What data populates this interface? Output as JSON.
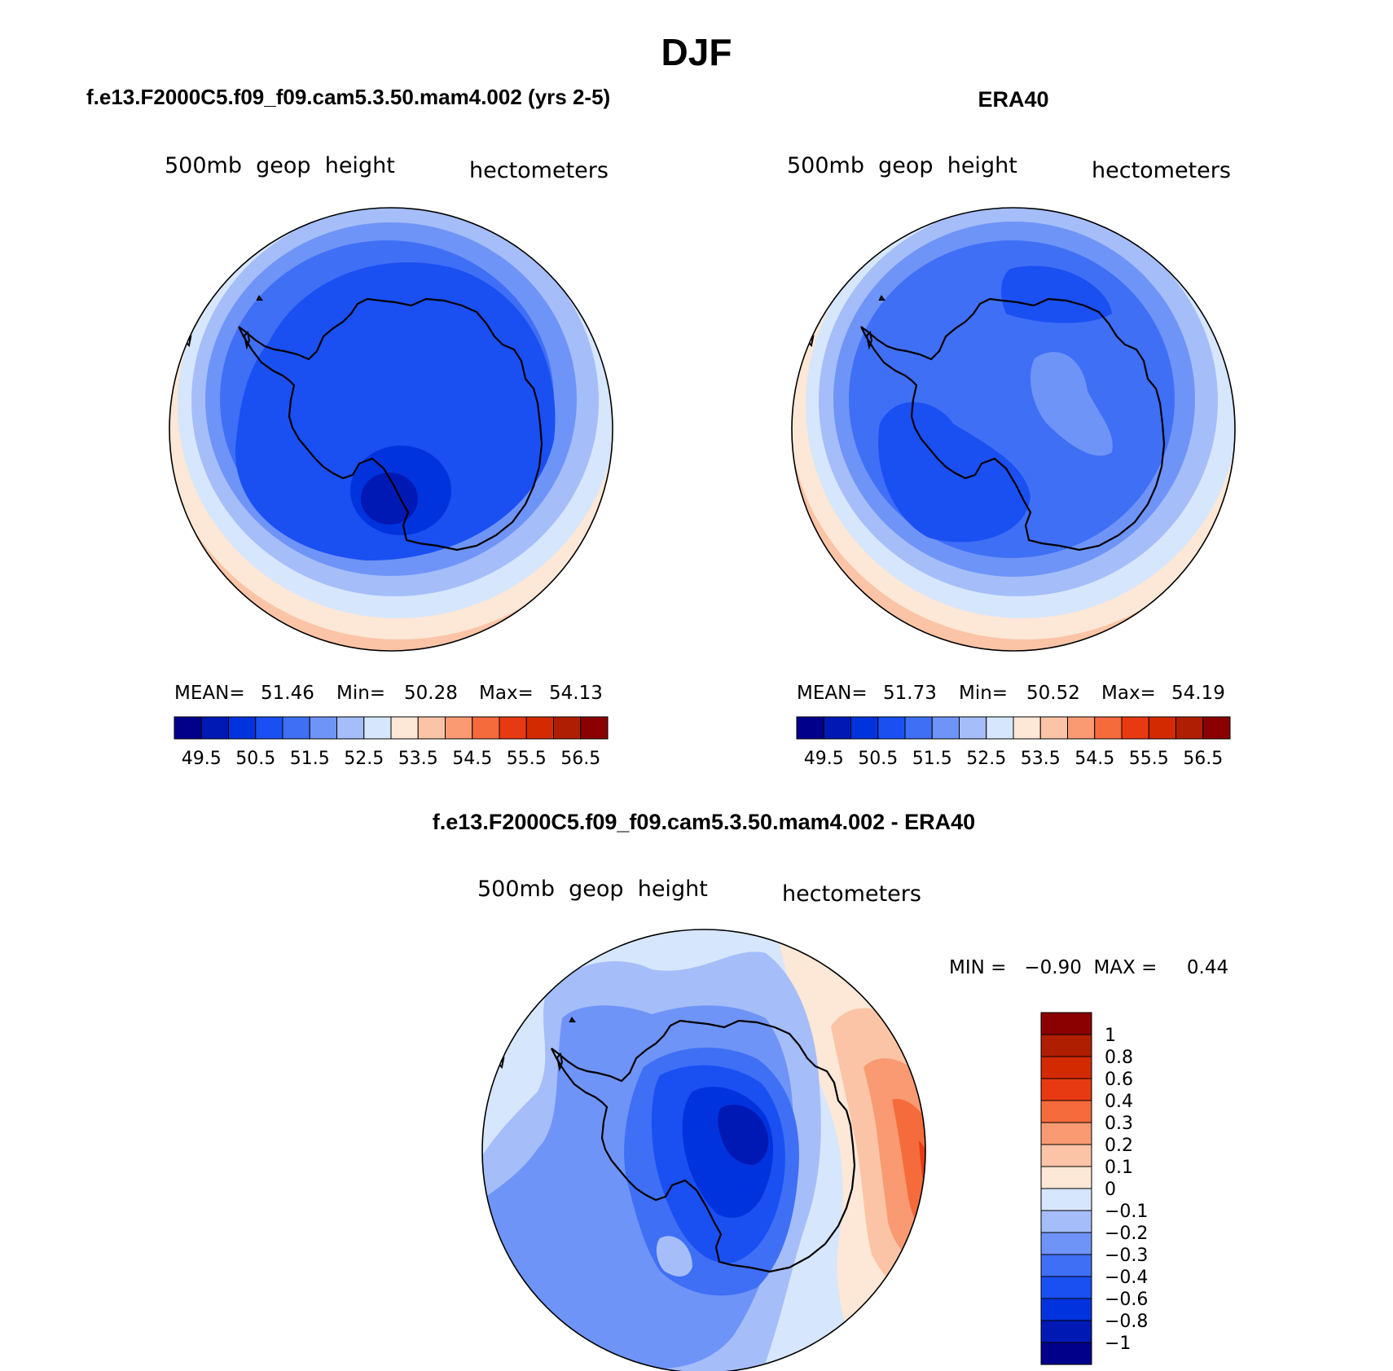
{
  "title": "DJF",
  "palette": [
    "#00008b",
    "#0019b4",
    "#0033dd",
    "#1a4ff2",
    "#3f6ff5",
    "#6f94f7",
    "#a5bdf9",
    "#d6e6fd",
    "#fde7d6",
    "#fbc4a6",
    "#f99a72",
    "#f66b3c",
    "#e83a12",
    "#d42a02",
    "#b01e02",
    "#8b0000"
  ],
  "panels": [
    {
      "id": "model",
      "header": "f.e13.F2000C5.f09_f09.cam5.3.50.mam4.002 (yrs 2-5)",
      "variable": "500mb  geop  height",
      "units": "hectometers",
      "stats": {
        "mean_label": "MEAN=",
        "mean": "51.46",
        "min_label": "Min=",
        "min": "50.28",
        "max_label": "Max=",
        "max": "54.13"
      },
      "colorbar_ticks": [
        "49.5",
        "50.5",
        "51.5",
        "52.5",
        "53.5",
        "54.5",
        "55.5",
        "56.5"
      ]
    },
    {
      "id": "era40",
      "header": "ERA40",
      "variable": "500mb  geop  height",
      "units": "hectometers",
      "stats": {
        "mean_label": "MEAN=",
        "mean": "51.73",
        "min_label": "Min=",
        "min": "50.52",
        "max_label": "Max=",
        "max": "54.19"
      },
      "colorbar_ticks": [
        "49.5",
        "50.5",
        "51.5",
        "52.5",
        "53.5",
        "54.5",
        "55.5",
        "56.5"
      ]
    },
    {
      "id": "difference",
      "header": "f.e13.F2000C5.f09_f09.cam5.3.50.mam4.002 - ERA40",
      "variable": "500mb  geop  height",
      "units": "hectometers",
      "stats": {
        "text": "MIN =   −0.90  MAX =     0.44"
      },
      "colorbar_ticks": [
        "1",
        "0.8",
        "0.6",
        "0.4",
        "0.3",
        "0.2",
        "0.1",
        "0",
        "−0.1",
        "−0.2",
        "−0.3",
        "−0.4",
        "−0.6",
        "−0.8",
        "−1"
      ]
    }
  ],
  "chart_data": [
    {
      "type": "heatmap",
      "title": "f.e13.F2000C5.f09_f09.cam5.3.50.mam4.002 (yrs 2-5)",
      "variable": "500mb geop height",
      "units": "hectometers",
      "projection": "south polar stereographic",
      "contour_levels": [
        49.5,
        50,
        50.5,
        51,
        51.5,
        52,
        52.5,
        53,
        53.5,
        54,
        54.5,
        55,
        55.5,
        56,
        56.5
      ],
      "mean": 51.46,
      "min": 50.28,
      "max": 54.13
    },
    {
      "type": "heatmap",
      "title": "ERA40",
      "variable": "500mb geop height",
      "units": "hectometers",
      "projection": "south polar stereographic",
      "contour_levels": [
        49.5,
        50,
        50.5,
        51,
        51.5,
        52,
        52.5,
        53,
        53.5,
        54,
        54.5,
        55,
        55.5,
        56,
        56.5
      ],
      "mean": 51.73,
      "min": 50.52,
      "max": 54.19
    },
    {
      "type": "heatmap",
      "title": "f.e13.F2000C5.f09_f09.cam5.3.50.mam4.002 - ERA40",
      "variable": "500mb geop height",
      "units": "hectometers",
      "projection": "south polar stereographic",
      "contour_levels": [
        -1,
        -0.8,
        -0.6,
        -0.4,
        -0.3,
        -0.2,
        -0.1,
        0,
        0.1,
        0.2,
        0.3,
        0.4,
        0.6,
        0.8,
        1
      ],
      "min": -0.9,
      "max": 0.44
    }
  ]
}
